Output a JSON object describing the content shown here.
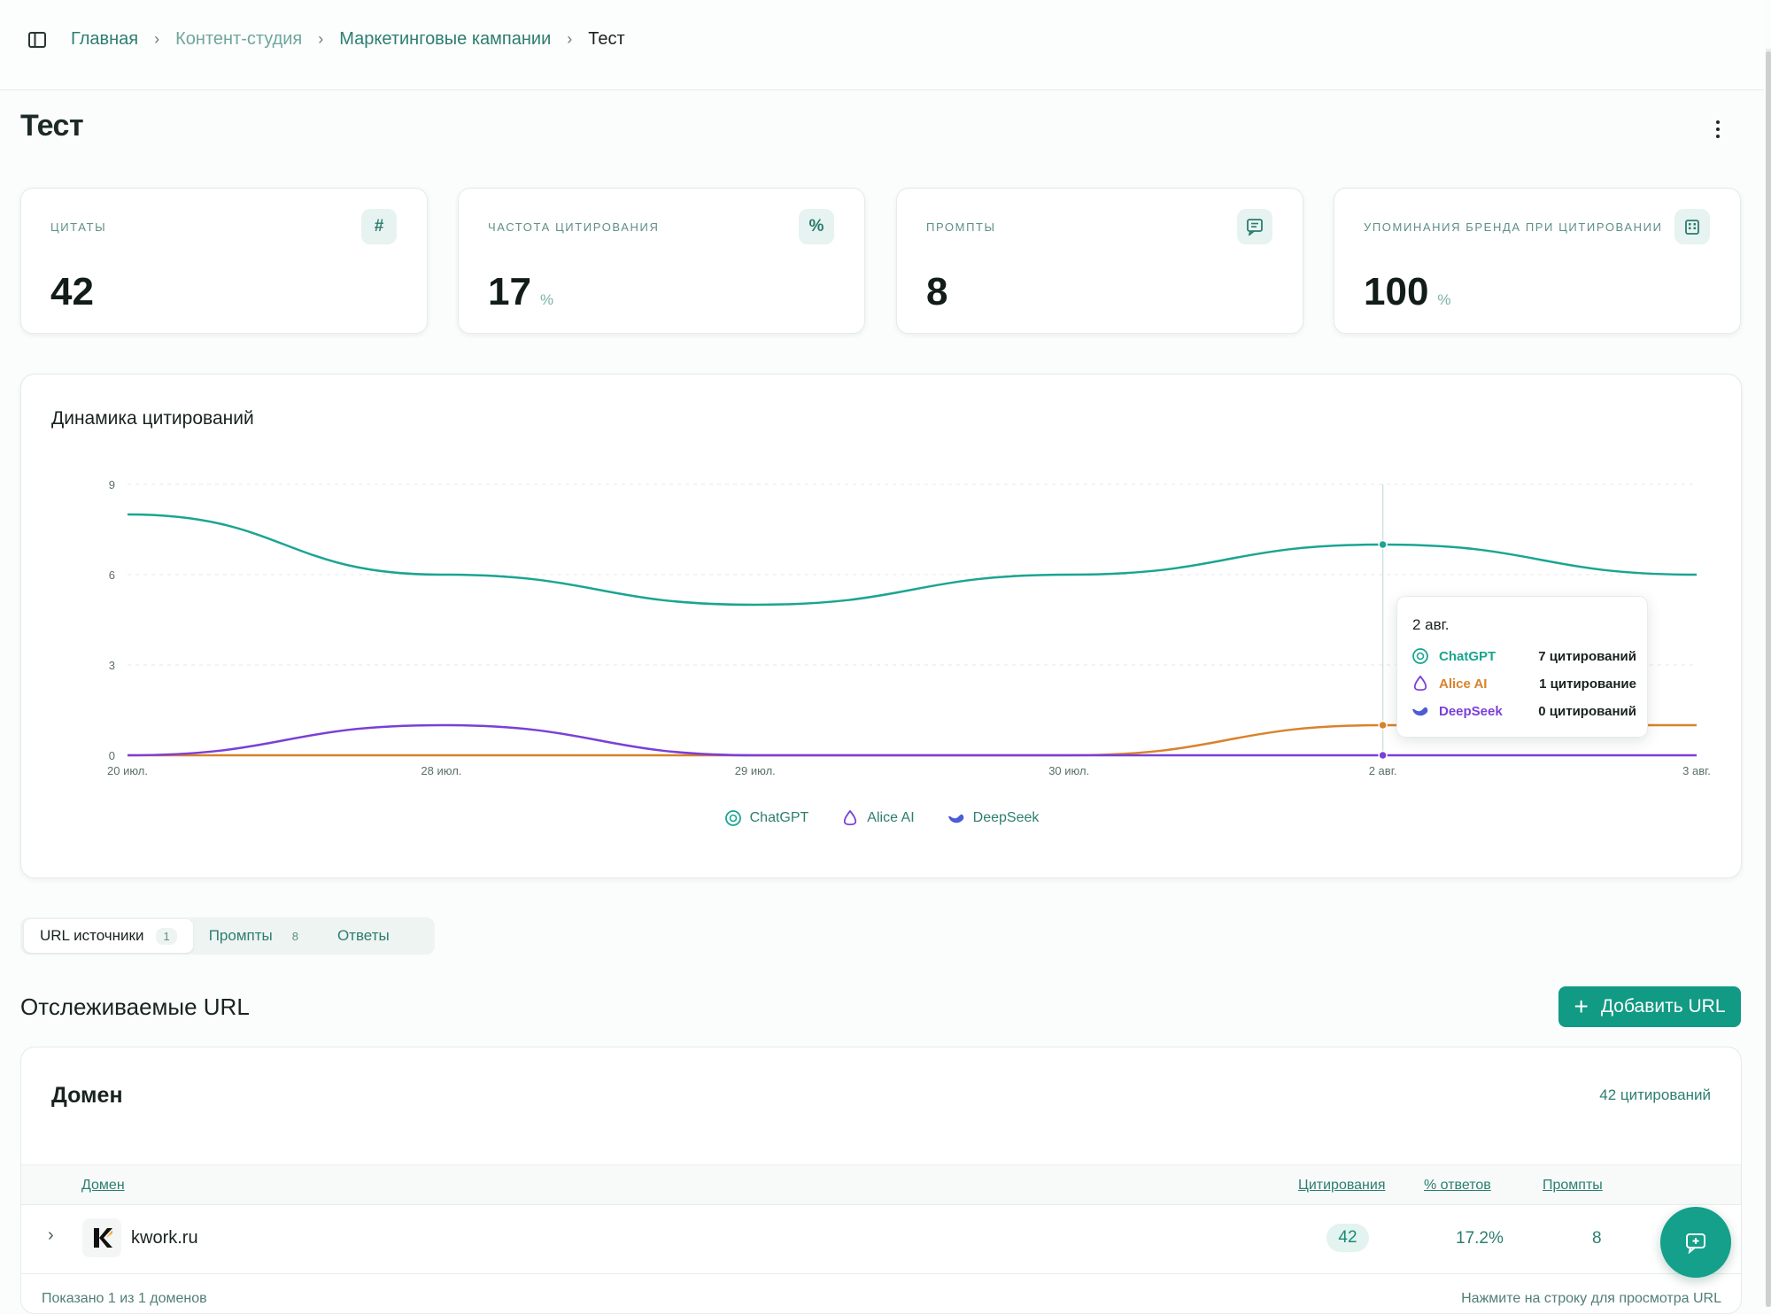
{
  "breadcrumb": {
    "items": [
      "Главная",
      "Контент-студия",
      "Маркетинговые кампании",
      "Тест"
    ]
  },
  "page": {
    "title": "Тест"
  },
  "kpis": [
    {
      "label": "Цитаты",
      "value": "42",
      "unit": "",
      "icon": "hash-icon"
    },
    {
      "label": "Частота цитирования",
      "value": "17",
      "unit": "%",
      "icon": "percent-icon"
    },
    {
      "label": "Промпты",
      "value": "8",
      "unit": "",
      "icon": "message-icon"
    },
    {
      "label": "Упоминания бренда при цитировании",
      "value": "100",
      "unit": "%",
      "icon": "building-icon"
    }
  ],
  "chart": {
    "title": "Динамика цитирований",
    "tooltip": {
      "date": "2 авг.",
      "rows": [
        {
          "name": "ChatGPT",
          "value": "7 цитирований"
        },
        {
          "name": "Alice AI",
          "value": "1 цитирование"
        },
        {
          "name": "DeepSeek",
          "value": "0 цитирований"
        }
      ]
    },
    "legend": [
      "ChatGPT",
      "Alice AI",
      "DeepSeek"
    ]
  },
  "chart_data": {
    "type": "line",
    "x": [
      "20 июл.",
      "28 июл.",
      "29 июл.",
      "30 июл.",
      "2 авг.",
      "3 авг."
    ],
    "y_ticks": [
      0,
      3,
      6,
      9
    ],
    "ylim": [
      0,
      9
    ],
    "grid": true,
    "legend_position": "bottom-center",
    "series": [
      {
        "name": "ChatGPT",
        "color": "#1aa591",
        "values": [
          8,
          6,
          5,
          6,
          7,
          6
        ]
      },
      {
        "name": "Alice AI",
        "color": "#d9822b",
        "values": [
          0,
          0,
          0,
          0,
          1,
          1
        ]
      },
      {
        "name": "DeepSeek",
        "color": "#7b3fd6",
        "values": [
          0,
          1,
          0,
          0,
          0,
          0
        ]
      }
    ]
  },
  "tabs": [
    {
      "label": "URL источники",
      "count": "1"
    },
    {
      "label": "Промпты",
      "count": "8"
    },
    {
      "label": "Ответы",
      "count": ""
    }
  ],
  "tracked": {
    "title": "Отслеживаемые URL",
    "add_button": "Добавить URL"
  },
  "domains": {
    "title": "Домен",
    "count": "42 цитирований",
    "columns": [
      "Домен",
      "Цитирования",
      "% ответов",
      "Промпты"
    ],
    "rows": [
      {
        "domain": "kwork.ru",
        "citations": "42",
        "percent": "17.2%",
        "prompts": "8"
      }
    ],
    "footer_left": "Показано 1 из 1 доменов",
    "footer_right": "Нажмите на строку для просмотра URL"
  },
  "colors": {
    "accent": "#119a84",
    "chatgpt": "#1aa591",
    "alice": "#d9822b",
    "deepseek": "#7b3fd6"
  }
}
